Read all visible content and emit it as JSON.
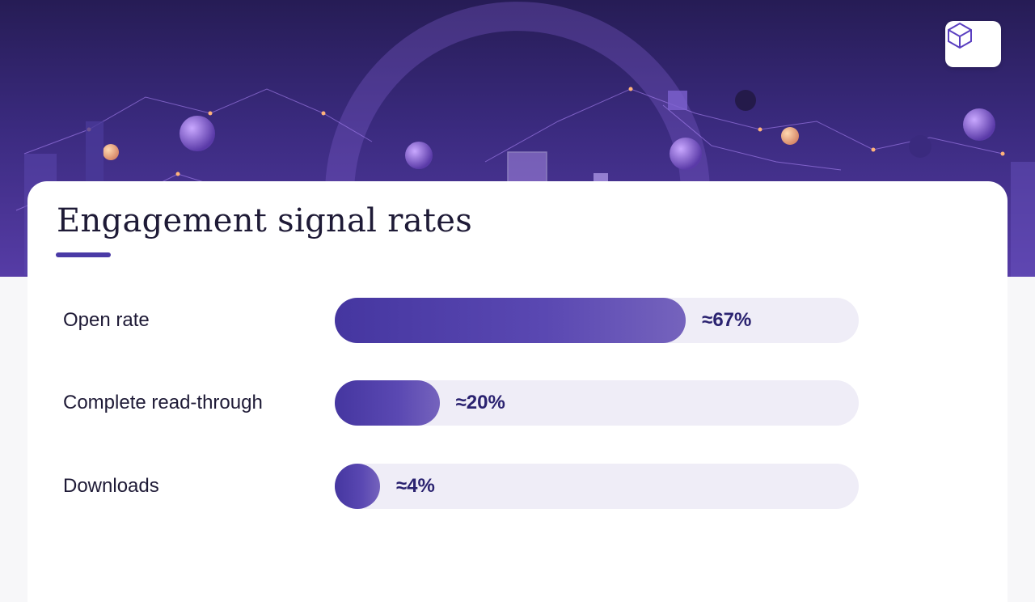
{
  "colors": {
    "accent": "#4a3aa6",
    "bar_start": "#4536a0",
    "bar_end": "#7563bd",
    "track": "#efedf7",
    "text": "#1e1a36",
    "value_text": "#2a2270"
  },
  "header": {
    "logo_icon": "brand-logo-icon"
  },
  "chart_data": {
    "type": "bar",
    "orientation": "horizontal",
    "title": "Engagement signal rates",
    "xlim": [
      0,
      100
    ],
    "grid": false,
    "categories": [
      "Open rate",
      "Complete read-through",
      "Downloads"
    ],
    "values": [
      67,
      20,
      4
    ],
    "value_labels": [
      "≈67%",
      "≈20%",
      "≈4%"
    ]
  }
}
